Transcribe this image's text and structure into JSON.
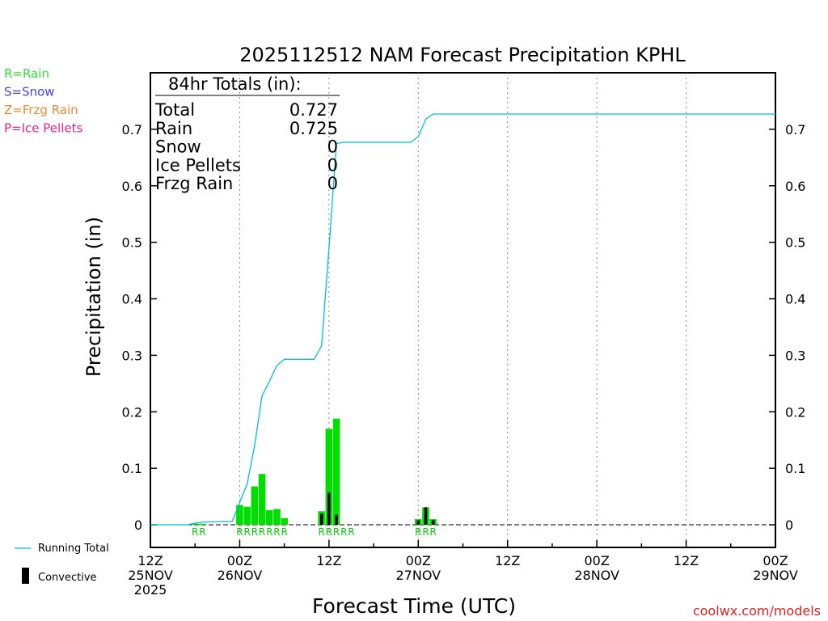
{
  "chart_data": {
    "type": "bar",
    "title": "2025112512 NAM Forecast Precipitation KPHL",
    "ylabel": "Precipitation (in)",
    "xlabel": "Forecast Time (UTC)",
    "ylim": [
      -0.04,
      0.8
    ],
    "xlim_hours": [
      0,
      84
    ],
    "yticks": [
      "0",
      "0.1",
      "0.2",
      "0.3",
      "0.4",
      "0.5",
      "0.6",
      "0.7"
    ],
    "yticks_values": [
      0,
      0.1,
      0.2,
      0.3,
      0.4,
      0.5,
      0.6,
      0.7
    ],
    "xticks": [
      {
        "hour": 0,
        "lines": [
          "12Z",
          "25NOV",
          "2025"
        ]
      },
      {
        "hour": 12,
        "lines": [
          "00Z",
          "26NOV"
        ]
      },
      {
        "hour": 24,
        "lines": [
          "12Z"
        ]
      },
      {
        "hour": 36,
        "lines": [
          "00Z",
          "27NOV"
        ]
      },
      {
        "hour": 48,
        "lines": [
          "12Z"
        ]
      },
      {
        "hour": 60,
        "lines": [
          "00Z",
          "28NOV"
        ]
      },
      {
        "hour": 72,
        "lines": [
          "12Z"
        ]
      },
      {
        "hour": 84,
        "lines": [
          "00Z",
          "29NOV"
        ]
      }
    ],
    "rain_bars": [
      {
        "hour": 6,
        "value": 0.002
      },
      {
        "hour": 7,
        "value": 0.002
      },
      {
        "hour": 12,
        "value": 0.035
      },
      {
        "hour": 13,
        "value": 0.032
      },
      {
        "hour": 14,
        "value": 0.068
      },
      {
        "hour": 15,
        "value": 0.09
      },
      {
        "hour": 16,
        "value": 0.026
      },
      {
        "hour": 17,
        "value": 0.028
      },
      {
        "hour": 18,
        "value": 0.012
      },
      {
        "hour": 23,
        "value": 0.024
      },
      {
        "hour": 24,
        "value": 0.17
      },
      {
        "hour": 25,
        "value": 0.188
      },
      {
        "hour": 36,
        "value": 0.01
      },
      {
        "hour": 37,
        "value": 0.031
      },
      {
        "hour": 38,
        "value": 0.01
      }
    ],
    "convective_bars": [
      {
        "hour": 23,
        "value": 0.02
      },
      {
        "hour": 24,
        "value": 0.057
      },
      {
        "hour": 25,
        "value": 0.018
      },
      {
        "hour": 36,
        "value": 0.008
      },
      {
        "hour": 37,
        "value": 0.031
      },
      {
        "hour": 38,
        "value": 0.008
      }
    ],
    "running_total": [
      {
        "hour": 0,
        "value": 0
      },
      {
        "hour": 5,
        "value": 0
      },
      {
        "hour": 6,
        "value": 0.003
      },
      {
        "hour": 7,
        "value": 0.005
      },
      {
        "hour": 10,
        "value": 0.006
      },
      {
        "hour": 11,
        "value": 0.006
      },
      {
        "hour": 12,
        "value": 0.04
      },
      {
        "hour": 13,
        "value": 0.072
      },
      {
        "hour": 14,
        "value": 0.14
      },
      {
        "hour": 15,
        "value": 0.228
      },
      {
        "hour": 16,
        "value": 0.254
      },
      {
        "hour": 17,
        "value": 0.282
      },
      {
        "hour": 18,
        "value": 0.293
      },
      {
        "hour": 22,
        "value": 0.293
      },
      {
        "hour": 23,
        "value": 0.317
      },
      {
        "hour": 24,
        "value": 0.49
      },
      {
        "hour": 25,
        "value": 0.675
      },
      {
        "hour": 26,
        "value": 0.677
      },
      {
        "hour": 35,
        "value": 0.677
      },
      {
        "hour": 36,
        "value": 0.687
      },
      {
        "hour": 37,
        "value": 0.718
      },
      {
        "hour": 38,
        "value": 0.727
      },
      {
        "hour": 84,
        "value": 0.727
      }
    ],
    "ptype_labels": [
      {
        "hour": 6,
        "text": "R"
      },
      {
        "hour": 7,
        "text": "R"
      },
      {
        "hour": 12,
        "text": "R"
      },
      {
        "hour": 13,
        "text": "R"
      },
      {
        "hour": 14,
        "text": "R"
      },
      {
        "hour": 15,
        "text": "R"
      },
      {
        "hour": 16,
        "text": "R"
      },
      {
        "hour": 17,
        "text": "R"
      },
      {
        "hour": 18,
        "text": "R"
      },
      {
        "hour": 23,
        "text": "R"
      },
      {
        "hour": 24,
        "text": "R"
      },
      {
        "hour": 25,
        "text": "R"
      },
      {
        "hour": 26,
        "text": "R"
      },
      {
        "hour": 27,
        "text": "R"
      },
      {
        "hour": 36,
        "text": "R"
      },
      {
        "hour": 37,
        "text": "R"
      },
      {
        "hour": 38,
        "text": "R"
      }
    ],
    "totals": {
      "heading": "84hr Totals (in):",
      "rows": [
        {
          "label": "Total",
          "value": "0.727"
        },
        {
          "label": "Rain",
          "value": "0.725"
        },
        {
          "label": "Snow",
          "value": "0"
        },
        {
          "label": "Ice Pellets",
          "value": "0"
        },
        {
          "label": "Frzg Rain",
          "value": "0"
        }
      ]
    },
    "ptype_legend": [
      {
        "text": "R=Rain",
        "color": "#33dd33"
      },
      {
        "text": "S=Snow",
        "color": "#4444ee"
      },
      {
        "text": "Z=Frzg Rain",
        "color": "#ee8833"
      },
      {
        "text": "P=Ice Pellets",
        "color": "#ee2288"
      }
    ],
    "series_legend": {
      "running_total": "Running Total",
      "convective": "Convective"
    },
    "colors": {
      "rain": "#00dd00",
      "convective": "#000000",
      "running_total": "#00c0d0",
      "ptype_text": "#00cc00",
      "credit": "#dd2222"
    },
    "credit": "coolwx.com/models"
  }
}
